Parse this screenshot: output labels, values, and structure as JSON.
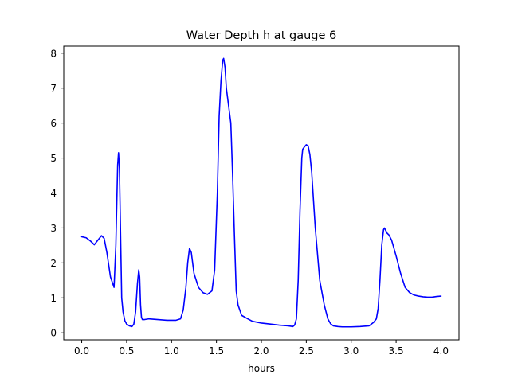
{
  "chart_data": {
    "type": "line",
    "title": "Water Depth h at gauge 6",
    "xlabel": "hours",
    "ylabel": "",
    "xlim": [
      -0.2,
      4.2
    ],
    "ylim": [
      -0.2,
      8.2
    ],
    "xticks": [
      0.0,
      0.5,
      1.0,
      1.5,
      2.0,
      2.5,
      3.0,
      3.5,
      4.0
    ],
    "xtick_labels": [
      "0.0",
      "0.5",
      "1.0",
      "1.5",
      "2.0",
      "2.5",
      "3.0",
      "3.5",
      "4.0"
    ],
    "yticks": [
      0,
      1,
      2,
      3,
      4,
      5,
      6,
      7,
      8
    ],
    "ytick_labels": [
      "0",
      "1",
      "2",
      "3",
      "4",
      "5",
      "6",
      "7",
      "8"
    ],
    "grid": false,
    "line_color": "#0000ff",
    "series": [
      {
        "x": [
          0.0,
          0.05,
          0.1,
          0.14,
          0.18,
          0.22,
          0.25,
          0.28,
          0.32,
          0.36,
          0.38,
          0.4,
          0.41,
          0.42,
          0.43,
          0.445,
          0.46,
          0.48,
          0.5,
          0.53,
          0.56,
          0.58,
          0.6,
          0.62,
          0.635,
          0.645,
          0.655,
          0.665,
          0.675,
          0.7,
          0.75,
          0.85,
          0.95,
          1.0,
          1.05,
          1.1,
          1.13,
          1.16,
          1.18,
          1.2,
          1.22,
          1.25,
          1.3,
          1.35,
          1.4,
          1.45,
          1.48,
          1.51,
          1.53,
          1.55,
          1.57,
          1.58,
          1.595,
          1.61,
          1.63,
          1.66,
          1.68,
          1.7,
          1.72,
          1.74,
          1.78,
          1.85,
          1.9,
          2.0,
          2.1,
          2.2,
          2.3,
          2.35,
          2.37,
          2.39,
          2.41,
          2.43,
          2.45,
          2.46,
          2.48,
          2.5,
          2.52,
          2.54,
          2.56,
          2.6,
          2.65,
          2.7,
          2.74,
          2.77,
          2.8,
          2.85,
          2.9,
          2.95,
          3.0,
          3.1,
          3.2,
          3.25,
          3.28,
          3.3,
          3.32,
          3.34,
          3.36,
          3.37,
          3.38,
          3.4,
          3.42,
          3.45,
          3.5,
          3.55,
          3.6,
          3.65,
          3.7,
          3.75,
          3.8,
          3.85,
          3.9,
          3.95,
          4.0
        ],
        "y": [
          2.75,
          2.72,
          2.62,
          2.52,
          2.65,
          2.78,
          2.7,
          2.3,
          1.6,
          1.3,
          2.5,
          4.8,
          5.15,
          4.7,
          3.2,
          1.0,
          0.6,
          0.35,
          0.25,
          0.2,
          0.18,
          0.25,
          0.6,
          1.4,
          1.8,
          1.6,
          0.8,
          0.45,
          0.38,
          0.38,
          0.4,
          0.38,
          0.36,
          0.36,
          0.36,
          0.4,
          0.65,
          1.3,
          2.0,
          2.42,
          2.3,
          1.7,
          1.3,
          1.15,
          1.1,
          1.2,
          1.8,
          4.0,
          6.2,
          7.2,
          7.8,
          7.85,
          7.6,
          7.0,
          6.6,
          6.0,
          4.5,
          2.8,
          1.2,
          0.8,
          0.5,
          0.4,
          0.33,
          0.28,
          0.25,
          0.22,
          0.2,
          0.18,
          0.22,
          0.4,
          1.5,
          3.5,
          5.0,
          5.25,
          5.32,
          5.38,
          5.35,
          5.1,
          4.6,
          3.0,
          1.5,
          0.8,
          0.4,
          0.26,
          0.2,
          0.18,
          0.17,
          0.17,
          0.17,
          0.18,
          0.2,
          0.3,
          0.4,
          0.7,
          1.5,
          2.5,
          2.95,
          3.0,
          2.95,
          2.85,
          2.8,
          2.65,
          2.2,
          1.7,
          1.3,
          1.15,
          1.08,
          1.05,
          1.03,
          1.02,
          1.02,
          1.04,
          1.05
        ]
      }
    ]
  }
}
